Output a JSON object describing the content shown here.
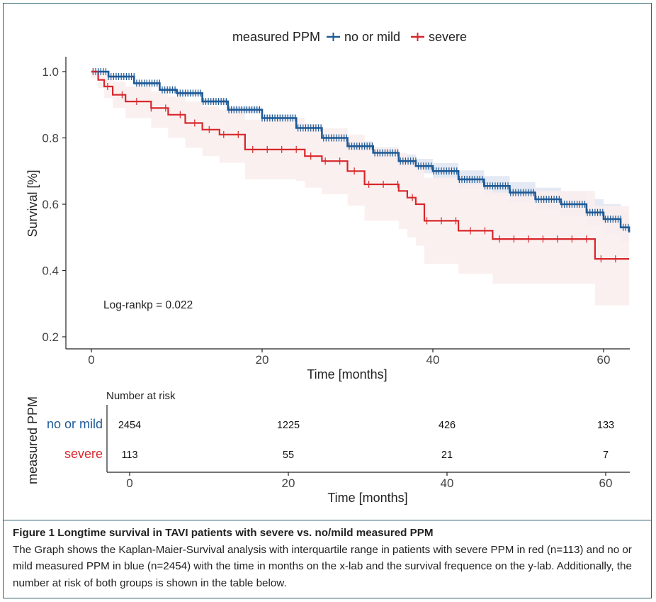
{
  "chart_data": [
    {
      "type": "line",
      "subtype": "kaplan-meier",
      "legend_title": "measured PPM",
      "legend_placement": "top-center",
      "xlabel": "Time [months]",
      "ylabel": "Survival [%]",
      "xlim": [
        -3,
        63
      ],
      "ylim": [
        0.18,
        1.02
      ],
      "x_ticks": [
        0,
        20,
        40,
        60
      ],
      "y_ticks": [
        0.2,
        0.4,
        0.6,
        0.8,
        1.0
      ],
      "y_tick_labels": [
        "0.2",
        "0.4",
        "0.6",
        "0.8",
        "1.0"
      ],
      "grid": false,
      "annotation": "Log-rankp = 0.022",
      "series": [
        {
          "name": "no or mild",
          "color": "#1f5a96",
          "band_color": "#dde3f0",
          "x": [
            0,
            2,
            5,
            8,
            10,
            13,
            16,
            20,
            24,
            27,
            30,
            33,
            36,
            38,
            40,
            43,
            46,
            49,
            52,
            55,
            58,
            60,
            62,
            63
          ],
          "y": [
            1.0,
            0.985,
            0.965,
            0.945,
            0.935,
            0.91,
            0.885,
            0.86,
            0.83,
            0.8,
            0.775,
            0.755,
            0.73,
            0.715,
            0.7,
            0.675,
            0.655,
            0.635,
            0.615,
            0.6,
            0.575,
            0.555,
            0.53,
            0.515
          ],
          "lower": [
            0.995,
            0.98,
            0.96,
            0.94,
            0.928,
            0.902,
            0.876,
            0.85,
            0.818,
            0.787,
            0.76,
            0.738,
            0.71,
            0.693,
            0.676,
            0.648,
            0.625,
            0.603,
            0.58,
            0.562,
            0.535,
            0.51,
            0.485,
            0.47
          ],
          "upper": [
            1.0,
            0.99,
            0.97,
            0.95,
            0.942,
            0.918,
            0.894,
            0.87,
            0.842,
            0.813,
            0.79,
            0.772,
            0.75,
            0.737,
            0.724,
            0.702,
            0.685,
            0.667,
            0.65,
            0.638,
            0.615,
            0.6,
            0.575,
            0.56
          ]
        },
        {
          "name": "severe",
          "color": "#d7272b",
          "band_color": "#fbeeee",
          "x": [
            0,
            0.8,
            1.5,
            2.5,
            4,
            7,
            9,
            11,
            13,
            15,
            18,
            20,
            24,
            25,
            27,
            30,
            32,
            36,
            37,
            38,
            39,
            40,
            43,
            47,
            52,
            59,
            63
          ],
          "y": [
            1.0,
            0.975,
            0.955,
            0.93,
            0.91,
            0.89,
            0.87,
            0.845,
            0.825,
            0.81,
            0.765,
            0.765,
            0.765,
            0.745,
            0.73,
            0.7,
            0.66,
            0.64,
            0.62,
            0.6,
            0.55,
            0.55,
            0.52,
            0.495,
            0.495,
            0.435,
            0.435
          ],
          "lower": [
            0.98,
            0.95,
            0.92,
            0.89,
            0.86,
            0.83,
            0.8,
            0.77,
            0.745,
            0.725,
            0.675,
            0.675,
            0.67,
            0.65,
            0.63,
            0.595,
            0.55,
            0.525,
            0.5,
            0.475,
            0.42,
            0.42,
            0.39,
            0.36,
            0.36,
            0.295,
            0.295
          ],
          "upper": [
            1.0,
            1.0,
            0.99,
            0.97,
            0.955,
            0.94,
            0.925,
            0.91,
            0.895,
            0.885,
            0.855,
            0.855,
            0.86,
            0.84,
            0.83,
            0.81,
            0.77,
            0.755,
            0.74,
            0.725,
            0.68,
            0.68,
            0.66,
            0.635,
            0.64,
            0.595,
            0.63
          ]
        }
      ]
    },
    {
      "type": "table",
      "title": "Number at risk",
      "ylabel": "measured PPM",
      "xlabel": "Time [months]",
      "x_ticks": [
        0,
        20,
        40,
        60
      ],
      "rows": [
        {
          "name": "no or mild",
          "color": "#1f5a96",
          "values": [
            "2454",
            "1225",
            "426",
            "133"
          ]
        },
        {
          "name": "severe",
          "color": "#d7272b",
          "values": [
            "113",
            "55",
            "21",
            "7"
          ]
        }
      ]
    }
  ],
  "caption": {
    "title": "Figure 1 Longtime survival in TAVI patients with severe vs. no/mild measured PPM",
    "text": "The Graph shows the Kaplan-Maier-Survival analysis with interquartile range in patients with severe PPM in red (n=113) and no or mild measured PPM in blue (n=2454) with the time in months on the x-lab and the survival frequence on the y-lab. Additionally, the number at risk of both groups is shown in the table below."
  }
}
